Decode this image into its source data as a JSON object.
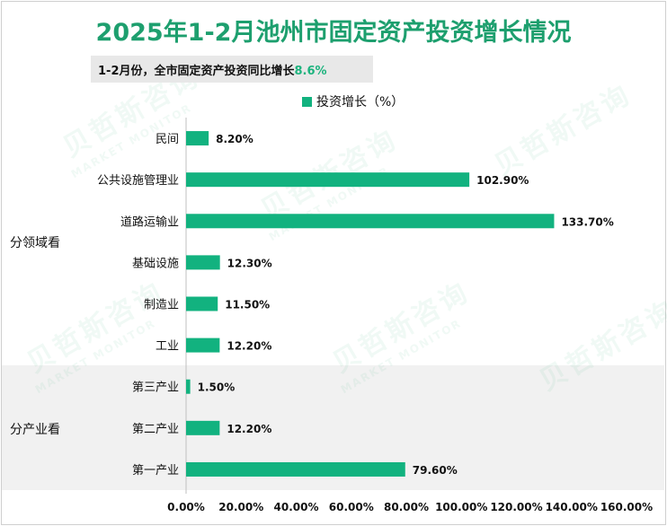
{
  "title": "2025年1-2月池州市固定资产投资增长情况",
  "subtitle": {
    "text": "1-2月份，全市固定资产投资同比增长",
    "value": "8.6%"
  },
  "legend": {
    "label": "投资增长（%）"
  },
  "groups": [
    {
      "label": "分领域看"
    },
    {
      "label": "分产业看"
    }
  ],
  "watermark": {
    "cn": "贝哲斯咨询",
    "en": "MARKET MONITOR"
  },
  "colors": {
    "bar": "#12b27f",
    "title": "#1d9f6e",
    "shade": "#f1f1f1"
  },
  "chart_data": {
    "type": "bar",
    "orientation": "horizontal",
    "title": "2025年1-2月池州市固定资产投资增长情况",
    "series": [
      {
        "name": "投资增长（%）",
        "values": [
          8.2,
          102.9,
          133.7,
          12.3,
          11.5,
          12.2,
          1.5,
          12.2,
          79.6
        ]
      }
    ],
    "categories": [
      "民间",
      "公共设施管理业",
      "道路运输业",
      "基础设施",
      "制造业",
      "工业",
      "第三产业",
      "第二产业",
      "第一产业"
    ],
    "value_labels": [
      "8.20%",
      "102.90%",
      "133.70%",
      "12.30%",
      "11.50%",
      "12.20%",
      "1.50%",
      "12.20%",
      "79.60%"
    ],
    "xlim": [
      0,
      160
    ],
    "xticks": [
      0,
      20,
      40,
      60,
      80,
      100,
      120,
      140,
      160
    ],
    "xtick_labels": [
      "0.00%",
      "20.00%",
      "40.00%",
      "60.00%",
      "80.00%",
      "100.00%",
      "120.00%",
      "140.00%",
      "160.00%"
    ],
    "category_groups": [
      {
        "label": "分领域看",
        "categories": [
          "民间",
          "公共设施管理业",
          "道路运输业",
          "基础设施",
          "制造业",
          "工业"
        ]
      },
      {
        "label": "分产业看",
        "categories": [
          "第三产业",
          "第二产业",
          "第一产业"
        ]
      }
    ],
    "legend_position": "top"
  }
}
